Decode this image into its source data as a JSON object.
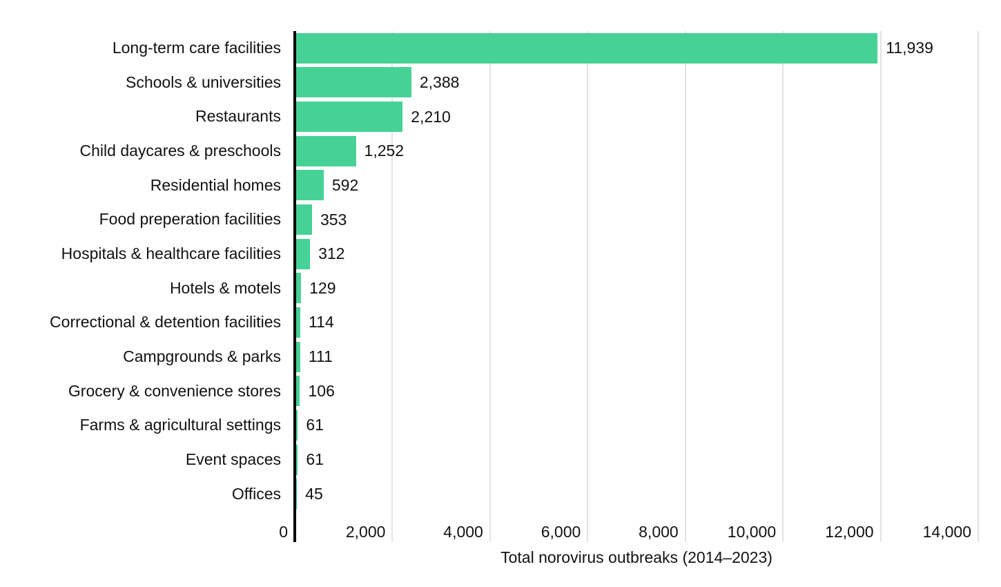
{
  "chart_data": {
    "type": "bar",
    "orientation": "horizontal",
    "title": "",
    "xlabel": "Total norovirus outbreaks (2014–2023)",
    "ylabel": "",
    "categories": [
      "Long-term care facilities",
      "Schools & universities",
      "Restaurants",
      "Child daycares & preschools",
      "Residential homes",
      "Food preperation facilities",
      "Hospitals & healthcare facilities",
      "Hotels & motels",
      "Correctional & detention facilities",
      "Campgrounds & parks",
      "Grocery & convenience stores",
      "Farms & agricultural settings",
      "Event spaces",
      "Offices"
    ],
    "values": [
      11939,
      2388,
      2210,
      1252,
      592,
      353,
      312,
      129,
      114,
      111,
      106,
      61,
      61,
      45
    ],
    "value_labels": [
      "11,939",
      "2,388",
      "2,210",
      "1,252",
      "592",
      "353",
      "312",
      "129",
      "114",
      "111",
      "106",
      "61",
      "61",
      "45"
    ],
    "xlim": [
      0,
      14000
    ],
    "xticks": [
      0,
      2000,
      4000,
      6000,
      8000,
      10000,
      12000,
      14000
    ],
    "xtick_labels": [
      "0",
      "2,000",
      "4,000",
      "6,000",
      "8,000",
      "10,000",
      "12,000",
      "14,000"
    ],
    "grid": "vertical-gridlines-on",
    "legend": "none",
    "colors": {
      "bar": "#46d296",
      "axis_line": "#000000",
      "gridline": "#e3e3e3",
      "text": "#121212",
      "background": "#ffffff"
    }
  }
}
